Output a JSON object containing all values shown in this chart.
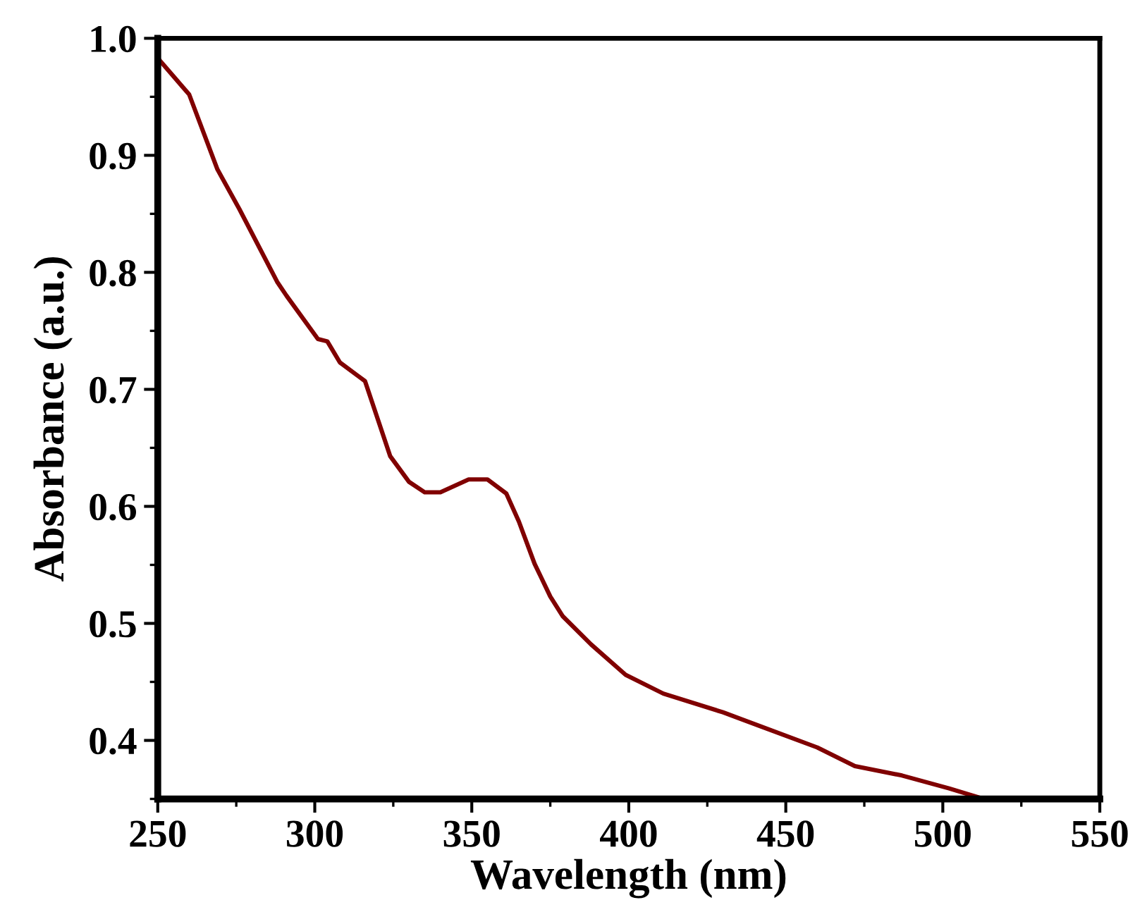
{
  "chart_data": {
    "type": "line",
    "xlabel": "Wavelength (nm)",
    "ylabel": "Absorbance (a.u.)",
    "xlim": [
      250,
      550
    ],
    "xticks": [
      250,
      300,
      350,
      400,
      450,
      500,
      550
    ],
    "ylim": [
      0.35,
      1.0
    ],
    "yticks": [
      0.4,
      0.5,
      0.6,
      0.7,
      0.8,
      0.9,
      {
        "value": 1.0,
        "label": "1.0"
      }
    ],
    "grid": false,
    "marker": "none",
    "line_style": "solid",
    "series": [
      {
        "color": "#800000",
        "x": [
          250,
          260,
          269,
          276,
          288,
          291,
          301,
          304,
          308,
          316,
          324,
          330,
          335,
          340,
          349,
          355,
          361,
          365,
          370,
          375,
          379,
          388,
          399,
          411,
          430,
          442,
          460,
          472,
          487,
          502,
          513
        ],
        "values": [
          0.983,
          0.952,
          0.888,
          0.854,
          0.792,
          0.78,
          0.743,
          0.741,
          0.723,
          0.707,
          0.643,
          0.621,
          0.612,
          0.612,
          0.623,
          0.623,
          0.611,
          0.587,
          0.551,
          0.523,
          0.506,
          0.482,
          0.456,
          0.44,
          0.424,
          0.412,
          0.394,
          0.378,
          0.37,
          0.359,
          0.35
        ]
      }
    ]
  }
}
